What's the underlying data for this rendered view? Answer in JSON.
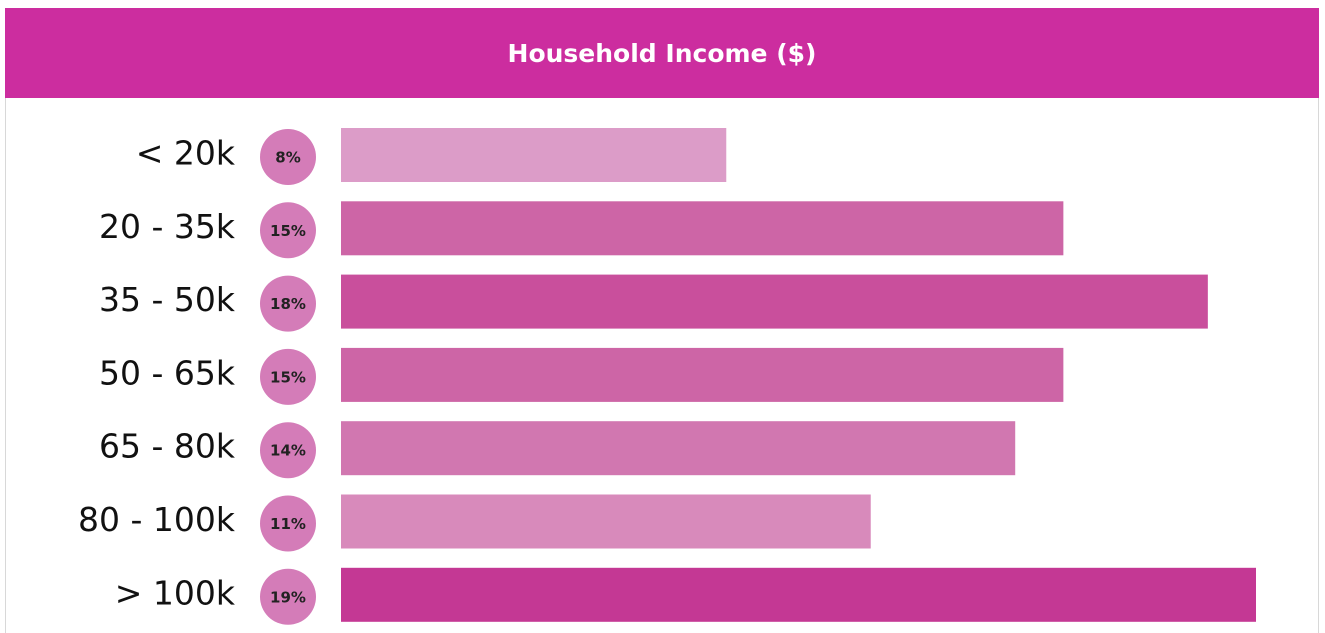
{
  "chart_data": {
    "type": "bar",
    "orientation": "horizontal",
    "title": "Household Income ($)",
    "categories": [
      "< 20k",
      "20 - 35k",
      "35 - 50k",
      "50 - 65k",
      "65 - 80k",
      "80 - 100k",
      "> 100k"
    ],
    "values": [
      8,
      15,
      18,
      15,
      14,
      11,
      19
    ],
    "value_labels": [
      "8%",
      "15%",
      "18%",
      "15%",
      "14%",
      "11%",
      "19%"
    ],
    "colors": [
      "#dc9cc8",
      "#cd65a6",
      "#c94f9c",
      "#cd65a6",
      "#d177b0",
      "#d88abb",
      "#c43894"
    ],
    "badge_color": "#d47cb8",
    "header_color": "#cc2d9f"
  }
}
